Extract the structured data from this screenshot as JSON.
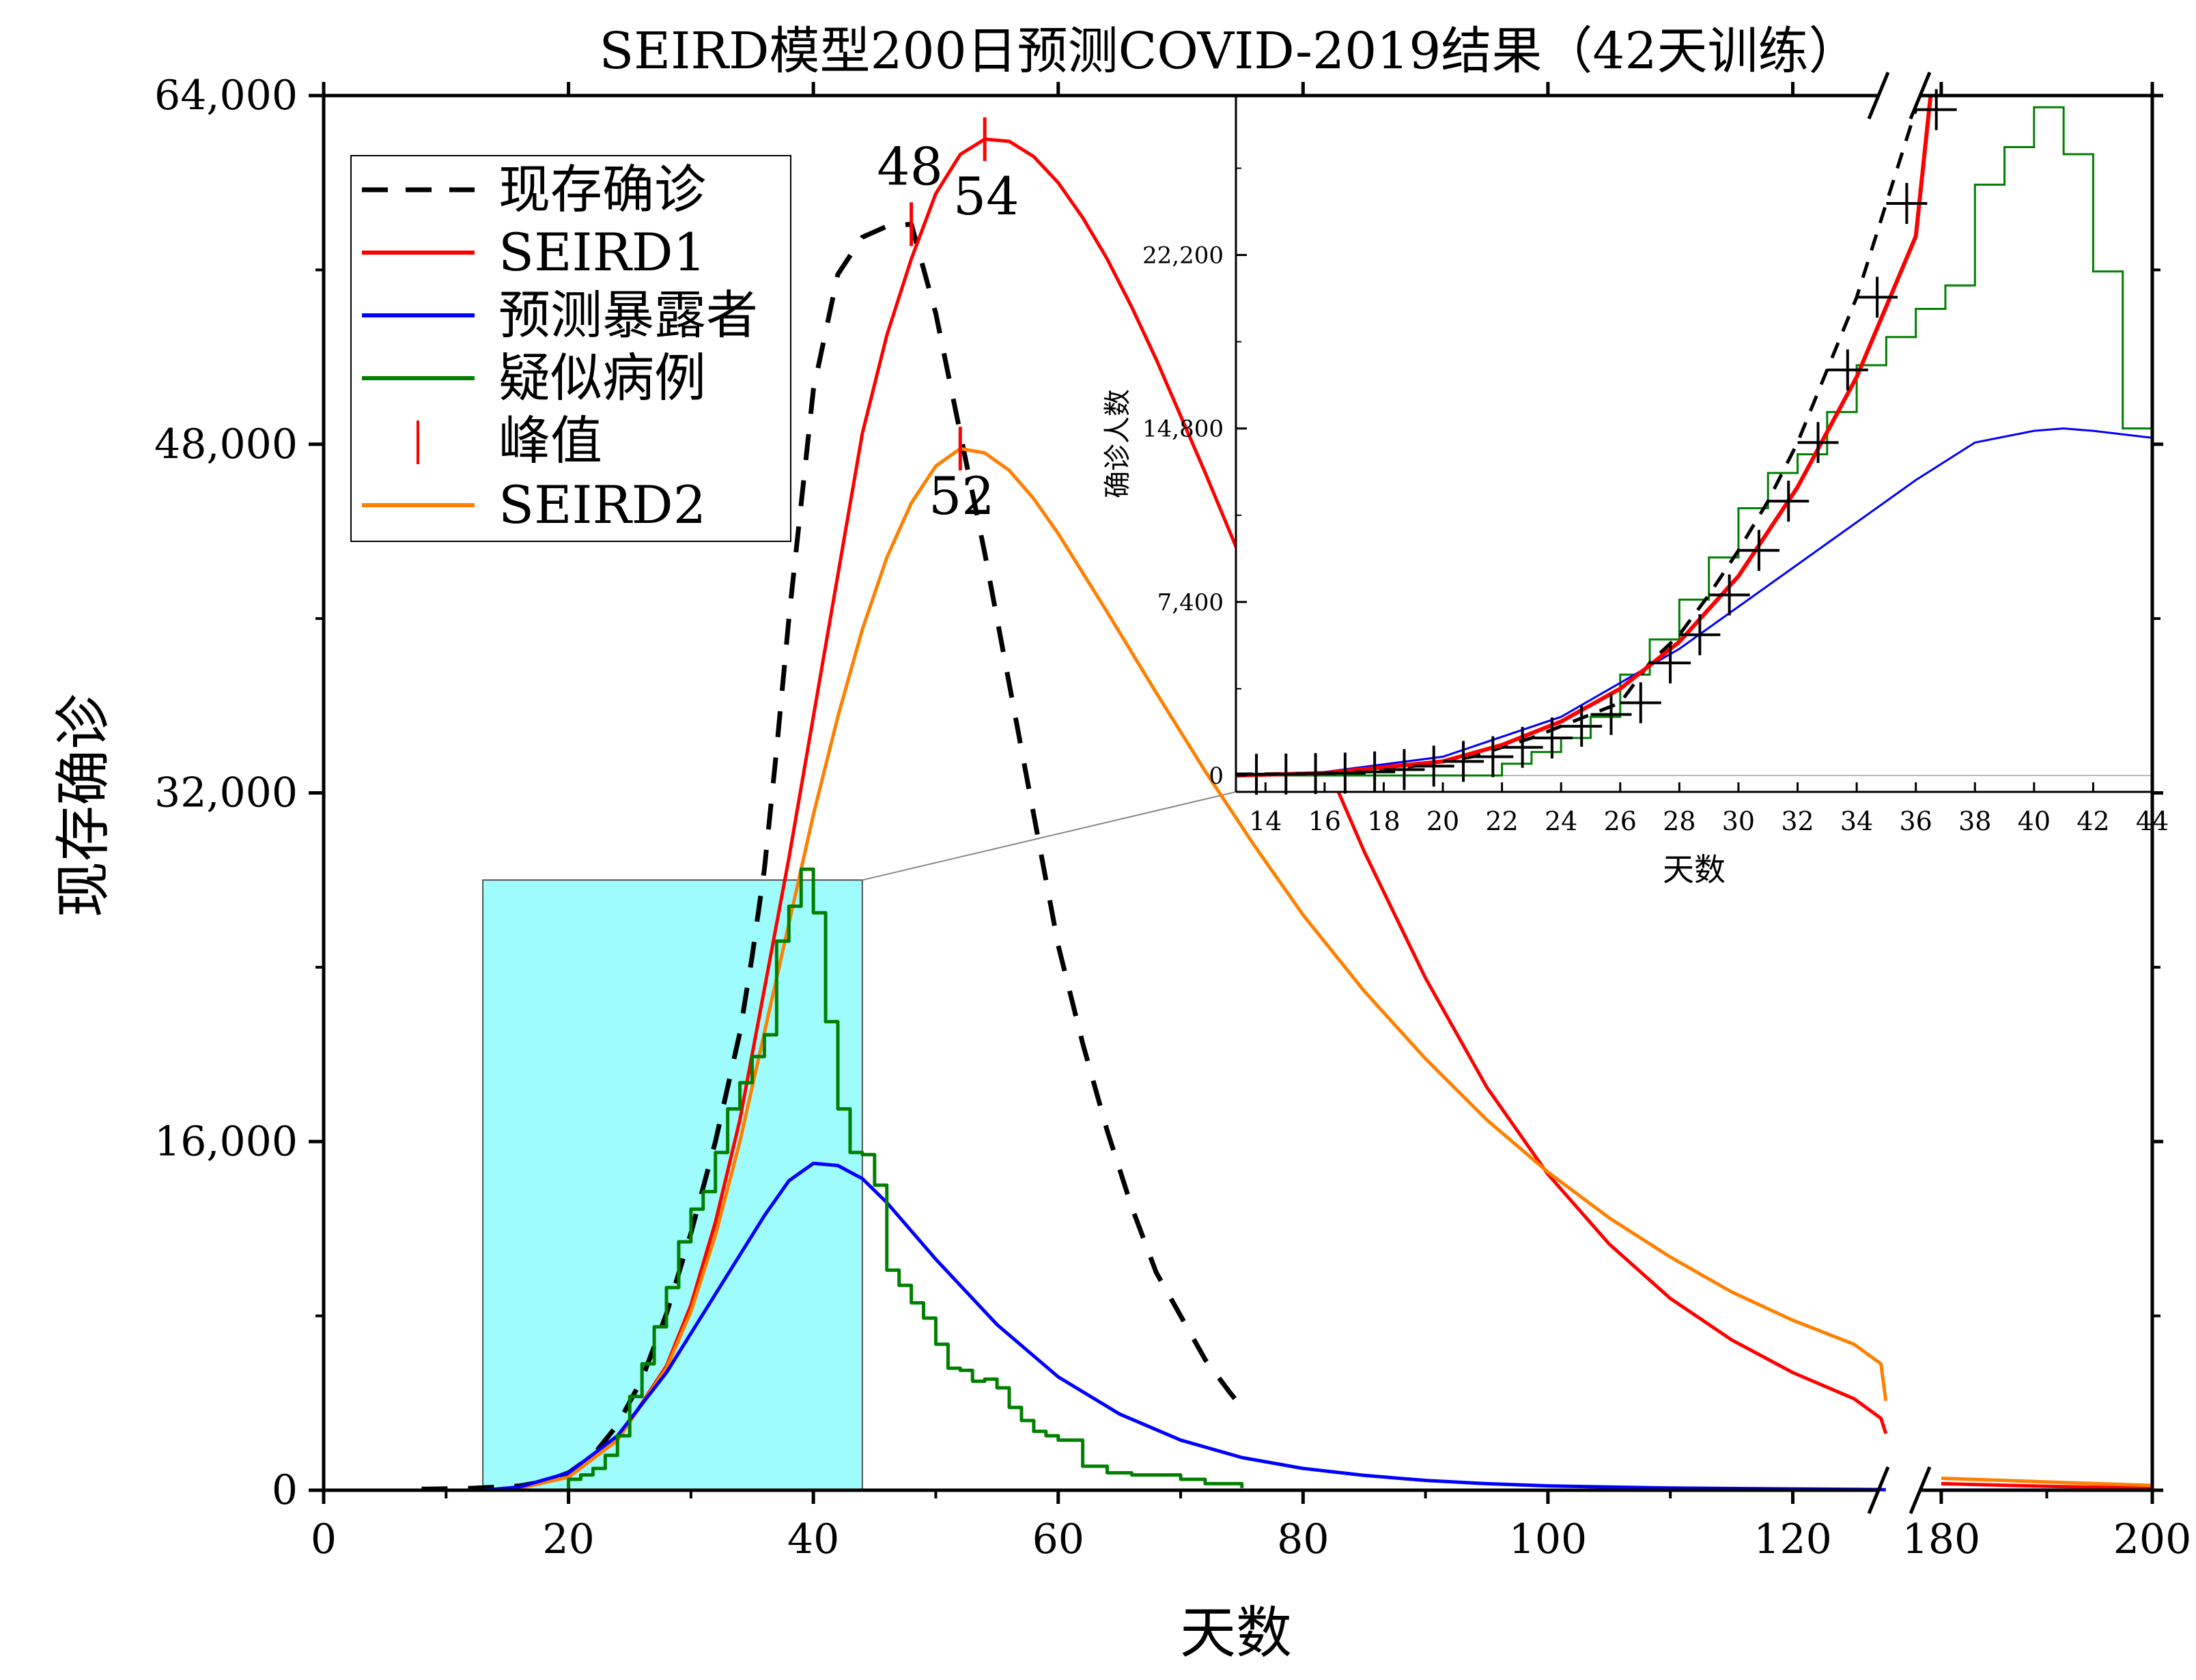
{
  "chart_data": {
    "type": "line",
    "title": "SEIRD模型200日预测COVID-2019结果（42天训练）",
    "xlabel": "天数",
    "ylabel": "现存确诊",
    "xlim_segments": [
      [
        0,
        127
      ],
      [
        178,
        200
      ]
    ],
    "x_ticks": [
      0,
      20,
      40,
      60,
      80,
      100,
      120,
      180,
      200
    ],
    "ylim": [
      0,
      64000
    ],
    "y_ticks": [
      0,
      16000,
      32000,
      48000,
      64000
    ],
    "y_tick_labels": [
      "0",
      "16,000",
      "32,000",
      "48,000",
      "64,000"
    ],
    "legend": {
      "position": "top-left",
      "entries": [
        "现存确诊",
        "SEIRD1",
        "预测暴露者",
        "疑似病例",
        "峰值",
        "SEIRD2"
      ]
    },
    "highlight_region": {
      "x": [
        13,
        44
      ],
      "y": [
        0,
        28000
      ],
      "color": "#9ffcfc"
    },
    "series": [
      {
        "name": "现存确诊",
        "color": "#000000",
        "style": "dashed",
        "x": [
          8,
          12,
          16,
          18,
          20,
          22,
          24,
          26,
          28,
          30,
          32,
          34,
          35,
          36,
          37,
          38,
          40,
          42,
          44,
          46,
          48,
          50,
          52,
          54,
          56,
          58,
          60,
          62,
          64,
          66,
          68,
          70,
          72,
          74,
          75
        ],
        "y": [
          50,
          90,
          200,
          400,
          800,
          1600,
          3000,
          5100,
          8100,
          11800,
          16000,
          21000,
          24500,
          28500,
          34000,
          40000,
          50500,
          55800,
          57500,
          58000,
          58100,
          54000,
          48500,
          43000,
          37000,
          31000,
          25000,
          20500,
          16500,
          13000,
          10000,
          8000,
          6000,
          4500,
          3800
        ]
      },
      {
        "name": "SEIRD1",
        "color": "#ff0000",
        "style": "solid",
        "x": [
          13,
          16,
          20,
          24,
          28,
          30,
          32,
          34,
          36,
          38,
          40,
          42,
          44,
          46,
          48,
          50,
          52,
          54,
          56,
          58,
          60,
          62,
          64,
          66,
          68,
          70,
          72,
          74,
          76,
          78,
          80,
          85,
          90,
          95,
          100,
          105,
          110,
          115,
          120,
          125,
          130,
          136
        ],
        "y": [
          0,
          100,
          600,
          2300,
          5700,
          8500,
          12300,
          17000,
          23000,
          29000,
          35500,
          42000,
          48500,
          53000,
          56500,
          59500,
          61300,
          62000,
          61900,
          61200,
          60000,
          58400,
          56500,
          54300,
          51900,
          49300,
          46700,
          44000,
          41300,
          38500,
          35800,
          29300,
          23500,
          18500,
          14500,
          11300,
          8800,
          6900,
          5400,
          4200,
          3300,
          2600
        ]
      },
      {
        "name": "SEIRD2",
        "color": "#ff8000",
        "style": "solid",
        "x": [
          13,
          16,
          20,
          24,
          28,
          30,
          32,
          34,
          36,
          38,
          40,
          42,
          44,
          46,
          48,
          50,
          52,
          54,
          56,
          58,
          60,
          64,
          68,
          72,
          76,
          80,
          85,
          90,
          95,
          100,
          105,
          110,
          115,
          120,
          125,
          130,
          136
        ],
        "y": [
          0,
          100,
          600,
          2300,
          5600,
          8200,
          11700,
          16000,
          21000,
          26000,
          31000,
          35500,
          39500,
          42800,
          45300,
          47000,
          47800,
          47600,
          46800,
          45500,
          43900,
          40300,
          36600,
          33000,
          29600,
          26400,
          22900,
          19800,
          17000,
          14600,
          12500,
          10700,
          9100,
          7800,
          6700,
          5800,
          4100
        ]
      },
      {
        "name": "预测暴露者",
        "color": "#0000ff",
        "style": "solid",
        "x": [
          13,
          16,
          20,
          24,
          28,
          32,
          36,
          38,
          40,
          42,
          44,
          46,
          50,
          55,
          60,
          65,
          70,
          75,
          80,
          85,
          90,
          95,
          100,
          110,
          120,
          130,
          136
        ],
        "y": [
          0,
          150,
          800,
          2500,
          5400,
          9000,
          12600,
          14200,
          15000,
          14900,
          14300,
          13200,
          10600,
          7600,
          5200,
          3500,
          2300,
          1500,
          1000,
          680,
          450,
          300,
          200,
          100,
          60,
          30,
          20
        ]
      },
      {
        "name": "疑似病例",
        "color": "#008000",
        "style": "step",
        "x": [
          13,
          20,
          21,
          22,
          23,
          24,
          25,
          26,
          27,
          28,
          29,
          30,
          31,
          32,
          33,
          34,
          35,
          36,
          37,
          38,
          39,
          40,
          41,
          42,
          43,
          44,
          45,
          46,
          47,
          48,
          49,
          50,
          51,
          52,
          53,
          54,
          55,
          56,
          57,
          58,
          59,
          60,
          62,
          64,
          66,
          68,
          70,
          72,
          75
        ],
        "y": [
          0,
          500,
          700,
          1000,
          1600,
          2500,
          4300,
          5800,
          7500,
          9300,
          11400,
          12900,
          13700,
          15500,
          17500,
          18700,
          19900,
          20900,
          25200,
          26800,
          28500,
          26500,
          21500,
          17500,
          15500,
          15400,
          14000,
          10100,
          9400,
          8600,
          7900,
          6700,
          5600,
          5500,
          5000,
          5100,
          4700,
          3800,
          3200,
          2700,
          2500,
          2300,
          1100,
          800,
          700,
          700,
          500,
          300,
          100
        ]
      },
      {
        "name": "SEIRD1_tail",
        "color": "#ff0000",
        "style": "solid",
        "x": [
          180,
          190,
          200
        ],
        "y": [
          300,
          180,
          100
        ]
      },
      {
        "name": "SEIRD2_tail",
        "color": "#ff8000",
        "style": "solid",
        "x": [
          180,
          190,
          200
        ],
        "y": [
          550,
          380,
          220
        ]
      },
      {
        "name": "预测暴露者_tail",
        "color": "#0000ff",
        "style": "solid",
        "x": [
          180,
          200
        ],
        "y": [
          5,
          2
        ]
      }
    ],
    "peaks": [
      {
        "label": "48",
        "x": 48,
        "y": 58100,
        "color": "#ff0000"
      },
      {
        "label": "54",
        "x": 54,
        "y": 62000,
        "color": "#ff0000"
      },
      {
        "label": "52",
        "x": 52,
        "y": 47800,
        "color": "#ff0000"
      }
    ],
    "inset": {
      "title": "",
      "xlabel": "天数",
      "ylabel": "确诊人数",
      "xlim": [
        13,
        44
      ],
      "ylim": [
        -700,
        29000
      ],
      "x_ticks": [
        14,
        16,
        18,
        20,
        22,
        24,
        26,
        28,
        30,
        32,
        34,
        36,
        38,
        40,
        42,
        44
      ],
      "y_ticks": [
        0,
        7400,
        14800,
        22200
      ],
      "y_tick_labels": [
        "0",
        "7,400",
        "14,800",
        "22,200"
      ],
      "confirmed_points": {
        "x": [
          13,
          14,
          15,
          16,
          17,
          18,
          19,
          20,
          21,
          22,
          23,
          24,
          25,
          26,
          27,
          28,
          29,
          30,
          31,
          32,
          33,
          34,
          35,
          36
        ],
        "y": [
          50,
          60,
          80,
          100,
          150,
          250,
          400,
          600,
          800,
          1200,
          1600,
          2100,
          2600,
          3100,
          4800,
          6000,
          7700,
          9600,
          11700,
          14200,
          17300,
          20400,
          24400,
          28400
        ]
      },
      "seird1": {
        "x": [
          13,
          16,
          20,
          22,
          24,
          26,
          28,
          30,
          32,
          34,
          36,
          36.5
        ],
        "y": [
          0,
          100,
          600,
          1300,
          2300,
          3700,
          5700,
          8500,
          12300,
          17000,
          23000,
          29000
        ]
      },
      "exposed": {
        "x": [
          13,
          16,
          20,
          24,
          28,
          32,
          36,
          38,
          40,
          41,
          42,
          44
        ],
        "y": [
          0,
          150,
          800,
          2500,
          5400,
          9000,
          12600,
          14200,
          14700,
          14800,
          14700,
          14400
        ]
      },
      "suspected": {
        "x": [
          13,
          22,
          23,
          24,
          25,
          26,
          27,
          28,
          29,
          30,
          31,
          32,
          33,
          34,
          35,
          36,
          37,
          38,
          39,
          40,
          41,
          42,
          43,
          44
        ],
        "y": [
          0,
          500,
          1000,
          1600,
          2500,
          4300,
          5800,
          7500,
          9300,
          11400,
          12900,
          13700,
          15500,
          17500,
          18700,
          19900,
          20900,
          25200,
          26800,
          28500,
          26500,
          21500,
          14800,
          9600
        ]
      }
    }
  }
}
